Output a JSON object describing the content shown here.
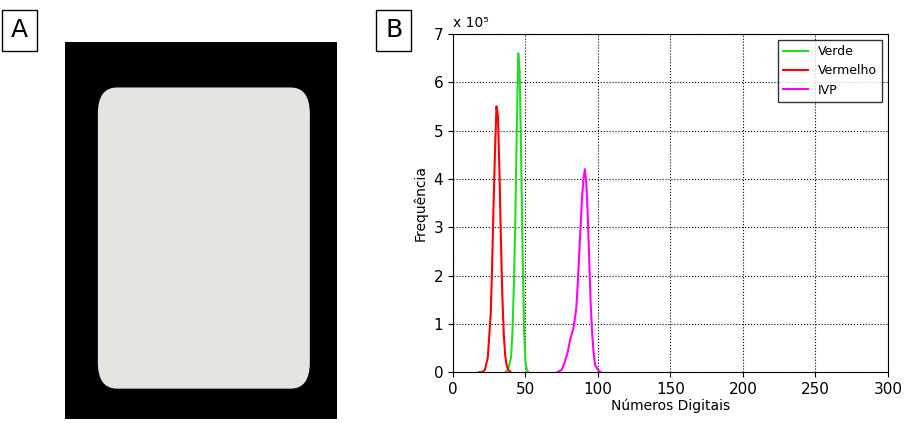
{
  "panel_labels": [
    "A",
    "B"
  ],
  "chart_data": {
    "type": "line",
    "x_label": "Números Digitais",
    "y_label": "Frequência",
    "annotation": "x 10⁵",
    "xlim": [
      0,
      300
    ],
    "xticks": [
      0,
      50,
      100,
      150,
      200,
      250,
      300
    ],
    "ylim": [
      0,
      7
    ],
    "yticks": [
      0,
      1,
      2,
      3,
      4,
      5,
      6,
      7
    ],
    "grid": true,
    "legend": "upper right",
    "series": [
      {
        "name": "Verde",
        "color": "#22dd22",
        "x": [
          36,
          38,
          40,
          41,
          42,
          43,
          44,
          45,
          46,
          47,
          48,
          49,
          50,
          51,
          52
        ],
        "values": [
          0,
          0.05,
          0.3,
          0.8,
          1.8,
          3.2,
          5.0,
          6.6,
          6.2,
          4.5,
          2.5,
          0.9,
          0.2,
          0.05,
          0
        ]
      },
      {
        "name": "Vermelho",
        "color": "#ff0000",
        "x": [
          18,
          20,
          22,
          24,
          26,
          27,
          28,
          29,
          30,
          31,
          32,
          33,
          34,
          35,
          36,
          37,
          38,
          40
        ],
        "values": [
          0,
          0,
          0.05,
          0.3,
          1.2,
          2.2,
          3.5,
          4.6,
          5.5,
          5.3,
          4.2,
          2.8,
          1.6,
          0.8,
          0.35,
          0.15,
          0.05,
          0
        ]
      },
      {
        "name": "IVP",
        "color": "#ff00ff",
        "x": [
          72,
          75,
          77,
          79,
          81,
          83,
          85,
          86,
          87,
          88,
          89,
          90,
          91,
          92,
          93,
          94,
          95,
          96,
          97,
          98,
          100,
          102
        ],
        "values": [
          0,
          0.05,
          0.2,
          0.4,
          0.7,
          0.9,
          1.3,
          1.8,
          2.4,
          3.0,
          3.6,
          4.0,
          4.2,
          3.9,
          3.2,
          2.3,
          1.4,
          0.8,
          0.4,
          0.15,
          0.05,
          0
        ]
      }
    ]
  }
}
